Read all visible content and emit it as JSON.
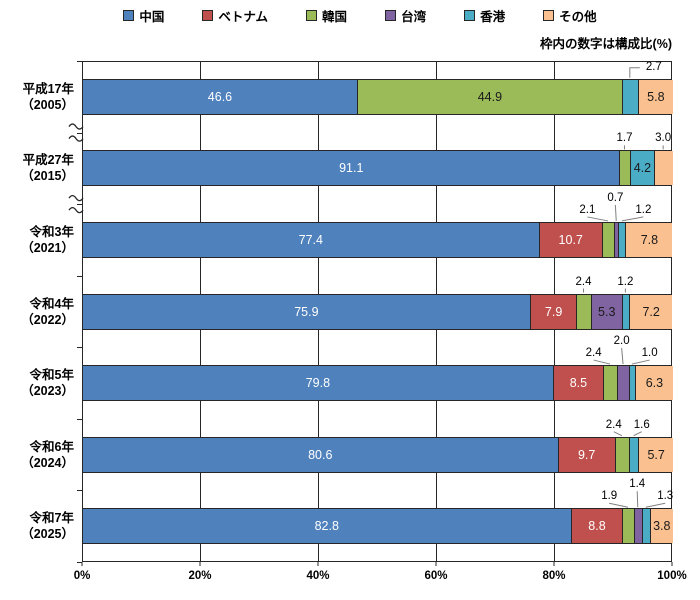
{
  "note": "枠内の数字は構成比(%)",
  "legend": {
    "items": [
      {
        "id": "china",
        "label": "中国",
        "color": "#4F81BD"
      },
      {
        "id": "vietnam",
        "label": "ベトナム",
        "color": "#C0504D"
      },
      {
        "id": "korea",
        "label": "韓国",
        "color": "#9BBB59"
      },
      {
        "id": "taiwan",
        "label": "台湾",
        "color": "#8064A2"
      },
      {
        "id": "hongkong",
        "label": "香港",
        "color": "#4BACC6"
      },
      {
        "id": "others",
        "label": "その他",
        "color": "#FAC090"
      }
    ]
  },
  "chart_data": {
    "type": "bar",
    "variant": "horizontal-stacked-100percent",
    "title": "",
    "xlabel": "",
    "ylabel": "",
    "unit": "%",
    "note": "枠内の数字は構成比(%)",
    "legend_position": "top",
    "x_axis": {
      "min": 0,
      "max": 100,
      "ticks": [
        "0%",
        "20%",
        "40%",
        "60%",
        "80%",
        "100%"
      ],
      "gridlines": true
    },
    "categories": [
      {
        "era": "平成17年",
        "year": "（2005）",
        "year_digits": "2005"
      },
      {
        "era": "平成27年",
        "year": "（2015）",
        "year_digits": "2015"
      },
      {
        "era": "令和3年",
        "year": "（2021）",
        "year_digits": "2021"
      },
      {
        "era": "令和4年",
        "year": "（2022）",
        "year_digits": "2022"
      },
      {
        "era": "令和5年",
        "year": "（2023）",
        "year_digits": "2023"
      },
      {
        "era": "令和6年",
        "year": "（2024）",
        "year_digits": "2024"
      },
      {
        "era": "令和7年",
        "year": "（2025）",
        "year_digits": "2025"
      }
    ],
    "series": [
      {
        "id": "china",
        "name": "中国",
        "color": "#4F81BD",
        "label_color": "#FFFFFF",
        "values": [
          46.6,
          91.1,
          77.4,
          75.9,
          79.8,
          80.6,
          82.8
        ]
      },
      {
        "id": "vietnam",
        "name": "ベトナム",
        "color": "#C0504D",
        "label_color": "#FFFFFF",
        "values": [
          0,
          0,
          10.7,
          7.9,
          8.5,
          9.7,
          8.8
        ]
      },
      {
        "id": "korea",
        "name": "韓国",
        "color": "#9BBB59",
        "label_color": "#1A1A1A",
        "values": [
          44.9,
          1.7,
          2.1,
          2.4,
          2.4,
          2.4,
          1.9
        ]
      },
      {
        "id": "taiwan",
        "name": "台湾",
        "color": "#8064A2",
        "label_color": "#1A1A1A",
        "values": [
          0,
          0,
          0.7,
          5.3,
          2.0,
          0,
          1.4
        ]
      },
      {
        "id": "hongkong",
        "name": "香港",
        "color": "#4BACC6",
        "label_color": "#1A1A1A",
        "values": [
          2.7,
          4.2,
          1.2,
          1.2,
          1.0,
          1.6,
          1.3
        ]
      },
      {
        "id": "others",
        "name": "その他",
        "color": "#FAC090",
        "label_color": "#1A1A1A",
        "values": [
          5.8,
          3.0,
          7.8,
          7.2,
          6.3,
          5.7,
          3.8
        ]
      }
    ],
    "axis_break_after_rows": [
      0,
      1
    ]
  }
}
